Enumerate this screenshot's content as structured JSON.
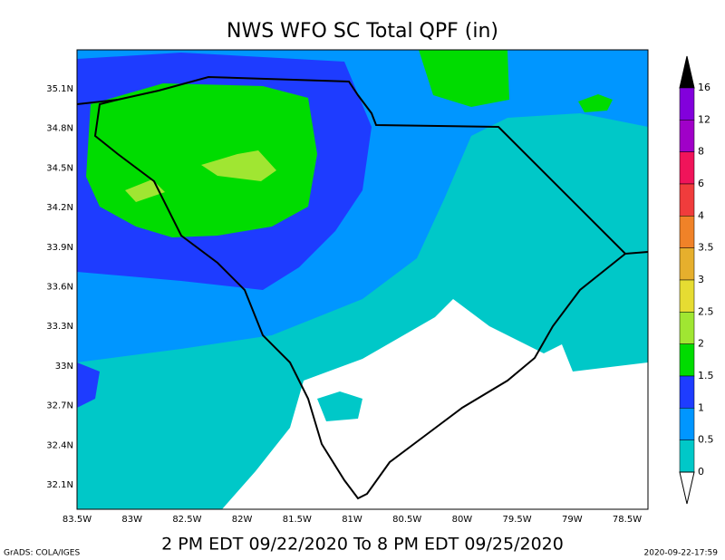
{
  "title": "NWS WFO SC Total QPF (in)",
  "map": {
    "lat_labels": [
      "35.1N",
      "34.8N",
      "34.5N",
      "34.2N",
      "33.9N",
      "33.6N",
      "33.3N",
      "33N",
      "32.7N",
      "32.4N",
      "32.1N"
    ],
    "lon_labels": [
      "83.5W",
      "83W",
      "82.5W",
      "82W",
      "81.5W",
      "81W",
      "80.5W",
      "80W",
      "79.5W",
      "79W",
      "78.5W"
    ]
  },
  "colorbar": {
    "levels": [
      16,
      12,
      8,
      6,
      4,
      3.5,
      3,
      2.5,
      2,
      1.5,
      1,
      0.5,
      0
    ],
    "colors": [
      "#8200dc",
      "#a000c8",
      "#f0145a",
      "#f03c3c",
      "#f08228",
      "#e6af2d",
      "#e6dc32",
      "#a0e632",
      "#00dc00",
      "#1e3cff",
      "#0096ff",
      "#00c8c8"
    ],
    "over_color": "#000000",
    "under_color": "#ffffff"
  },
  "subtitle": "2 PM EDT 09/22/2020 To 8 PM EDT 09/25/2020",
  "credit": "GrADS: COLA/IGES",
  "timestamp": "2020-09-22-17:59"
}
